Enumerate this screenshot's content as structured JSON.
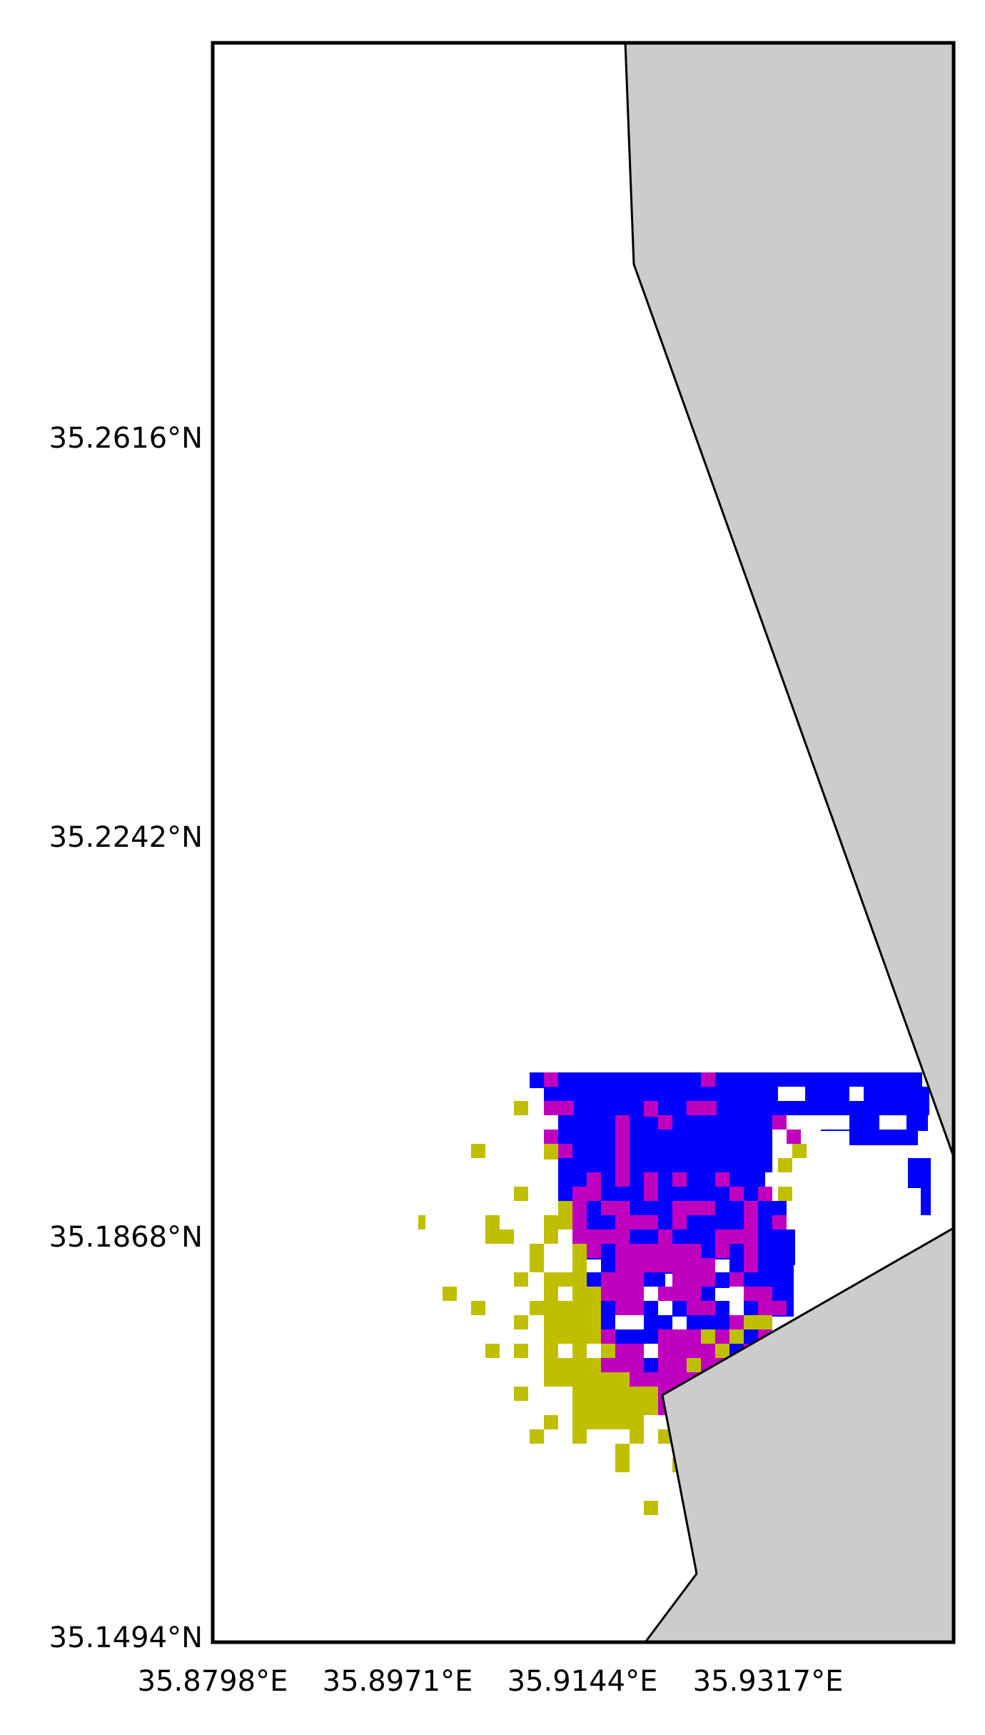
{
  "map": {
    "colors": {
      "background": "#ffffff",
      "land": "#cccccc",
      "outline": "#000000",
      "class_blue": "#0000ff",
      "class_magenta": "#bf00bf",
      "class_olive": "#bfbf00"
    },
    "lon_ticks": [
      "35.8798°E",
      "35.8971°E",
      "35.9144°E",
      "35.9317°E"
    ],
    "lat_ticks": [
      "35.2616°N",
      "35.2242°N",
      "35.1868°N",
      "35.1494°N"
    ]
  }
}
